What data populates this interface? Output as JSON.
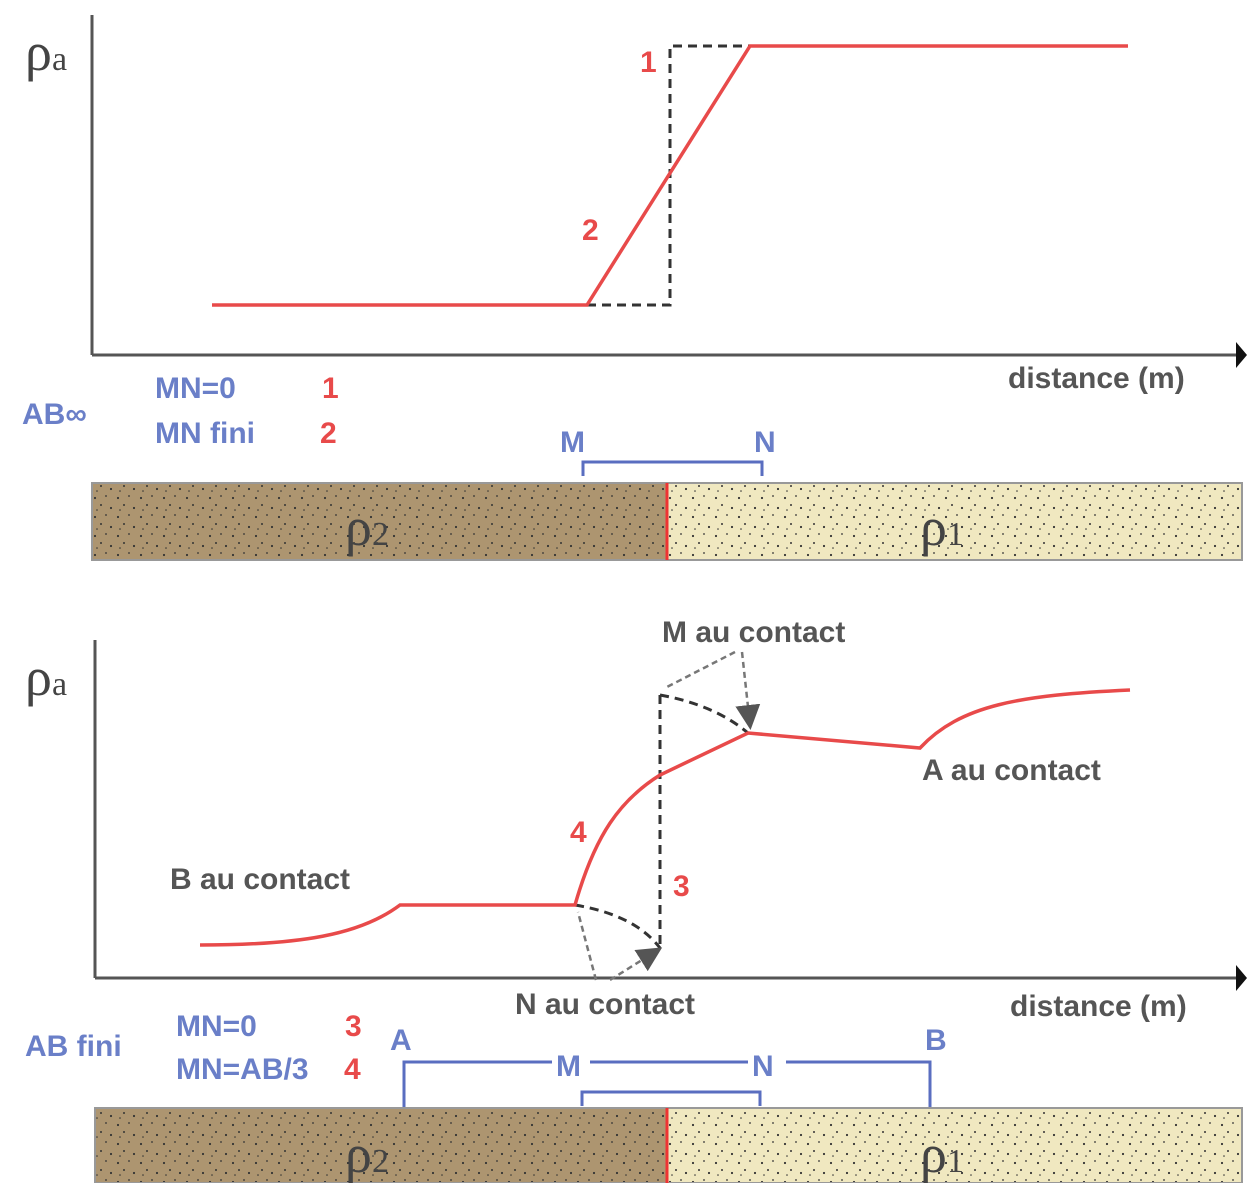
{
  "panels": [
    {
      "y_label": {
        "symbol": "ρ",
        "sub": "a"
      },
      "x_label": "distance (m)",
      "curve_labels": [
        "1",
        "2"
      ],
      "legend": {
        "config": "AB∞",
        "rows": [
          {
            "text": "MN=0",
            "id": "1"
          },
          {
            "text": "MN fini",
            "id": "2"
          }
        ]
      },
      "electrodes": [
        "M",
        "N"
      ],
      "layers": [
        {
          "symbol": "ρ",
          "sub": "2"
        },
        {
          "symbol": "ρ",
          "sub": "1"
        }
      ]
    },
    {
      "y_label": {
        "symbol": "ρ",
        "sub": "a"
      },
      "x_label": "distance (m)",
      "curve_labels": [
        "4",
        "3"
      ],
      "annotations": [
        "M au contact",
        "A au contact",
        "B au contact",
        "N au contact"
      ],
      "legend": {
        "config": "AB fini",
        "rows": [
          {
            "text": "MN=0",
            "id": "3"
          },
          {
            "text": "MN=AB/3",
            "id": "4"
          }
        ]
      },
      "electrodes": [
        "A",
        "M",
        "N",
        "B"
      ],
      "layers": [
        {
          "symbol": "ρ",
          "sub": "2"
        },
        {
          "symbol": "ρ",
          "sub": "1"
        }
      ]
    }
  ]
}
